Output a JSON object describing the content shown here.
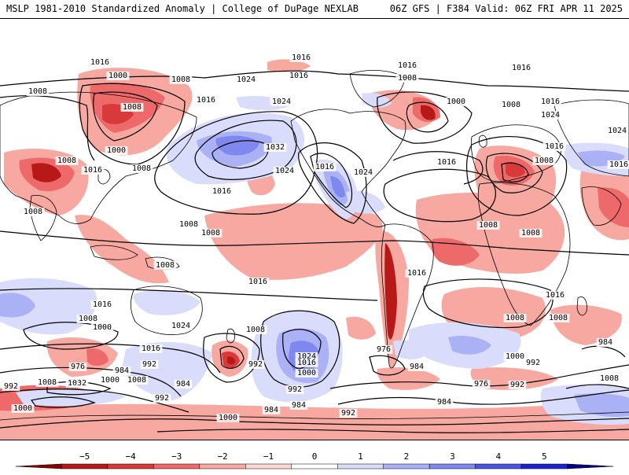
{
  "header": {
    "left_title": "MSLP 1981-2010 Standardized Anomaly | College of DuPage NEXLAB",
    "right_title": "06Z GFS | F384 Valid: 06Z FRI APR 11 2025"
  },
  "colorbar": {
    "ticks": [
      "−5",
      "−4",
      "−3",
      "−2",
      "−1",
      "0",
      "1",
      "2",
      "3",
      "4",
      "5"
    ],
    "colors": [
      "#8b0000",
      "#b71818",
      "#d83a3a",
      "#ee6a6a",
      "#f7a8a0",
      "#fcd9d2",
      "#ffffff",
      "#d9dcfa",
      "#aab1f4",
      "#7f88ee",
      "#4b55e2",
      "#1a22c9",
      "#00008b"
    ]
  },
  "map": {
    "colors": {
      "ocean": "#ffffff",
      "land": "#ffffff",
      "coast": "#000000",
      "neg_light": "#f7a8a0",
      "neg_mid": "#ee6a6a",
      "neg_strong": "#d83a3a",
      "neg_extreme": "#b71818",
      "pos_light": "#d9dcfa",
      "pos_mid": "#aab1f4",
      "pos_strong": "#7f88ee",
      "pos_extreme": "#4b55e2"
    },
    "isobar_labels": [
      {
        "id": "l1",
        "text": "1016"
      },
      {
        "id": "l2",
        "text": "1016"
      },
      {
        "id": "l3",
        "text": "1016"
      },
      {
        "id": "l4",
        "text": "1016"
      },
      {
        "id": "l5",
        "text": "1000"
      },
      {
        "id": "l6",
        "text": "1008"
      },
      {
        "id": "l7",
        "text": "1008"
      },
      {
        "id": "l8",
        "text": "1016"
      },
      {
        "id": "l9",
        "text": "1024"
      },
      {
        "id": "l10",
        "text": "1016"
      },
      {
        "id": "l11",
        "text": "1024"
      },
      {
        "id": "l12",
        "text": "1008"
      },
      {
        "id": "l13",
        "text": "1000"
      },
      {
        "id": "l14",
        "text": "1008"
      },
      {
        "id": "l15",
        "text": "1016"
      },
      {
        "id": "l16",
        "text": "1024"
      },
      {
        "id": "l17",
        "text": "1016"
      },
      {
        "id": "l18",
        "text": "1008"
      },
      {
        "id": "l19",
        "text": "1000"
      },
      {
        "id": "l20",
        "text": "1008"
      },
      {
        "id": "l21",
        "text": "1032"
      },
      {
        "id": "l22",
        "text": "1024"
      },
      {
        "id": "l23",
        "text": "1016"
      },
      {
        "id": "l24",
        "text": "1016"
      },
      {
        "id": "l25",
        "text": "1024"
      },
      {
        "id": "l26",
        "text": "1016"
      },
      {
        "id": "l27",
        "text": "1008"
      },
      {
        "id": "l28",
        "text": "1016"
      },
      {
        "id": "l29",
        "text": "1024"
      },
      {
        "id": "l30",
        "text": "1016"
      },
      {
        "id": "l31",
        "text": "1008"
      },
      {
        "id": "l32",
        "text": "1008"
      },
      {
        "id": "l33",
        "text": "1008"
      },
      {
        "id": "l34",
        "text": "1008"
      },
      {
        "id": "l35",
        "text": "1008"
      },
      {
        "id": "l36",
        "text": "1008"
      },
      {
        "id": "l37",
        "text": "1008"
      },
      {
        "id": "l38",
        "text": "1016"
      },
      {
        "id": "l39",
        "text": "1016"
      },
      {
        "id": "l40",
        "text": "1016"
      },
      {
        "id": "l41",
        "text": "1016"
      },
      {
        "id": "l42",
        "text": "1024"
      },
      {
        "id": "l43",
        "text": "1008"
      },
      {
        "id": "l44",
        "text": "1000"
      },
      {
        "id": "l45",
        "text": "1016"
      },
      {
        "id": "l46",
        "text": "1008"
      },
      {
        "id": "l47",
        "text": "1024"
      },
      {
        "id": "l48",
        "text": "1016"
      },
      {
        "id": "l49",
        "text": "992"
      },
      {
        "id": "l50",
        "text": "1000"
      },
      {
        "id": "l51",
        "text": "976"
      },
      {
        "id": "l52",
        "text": "984"
      },
      {
        "id": "l53",
        "text": "1008"
      },
      {
        "id": "l54",
        "text": "992"
      },
      {
        "id": "l55",
        "text": "1000"
      },
      {
        "id": "l56",
        "text": "984"
      },
      {
        "id": "l57",
        "text": "992"
      },
      {
        "id": "l58",
        "text": "992"
      },
      {
        "id": "l59",
        "text": "1032"
      },
      {
        "id": "l60",
        "text": "1000"
      },
      {
        "id": "l61",
        "text": "1008"
      },
      {
        "id": "l62",
        "text": "984"
      },
      {
        "id": "l63",
        "text": "992"
      },
      {
        "id": "l64",
        "text": "984"
      },
      {
        "id": "l65",
        "text": "992"
      },
      {
        "id": "l66",
        "text": "976"
      },
      {
        "id": "l67",
        "text": "984"
      },
      {
        "id": "l68",
        "text": "976"
      },
      {
        "id": "l69",
        "text": "992"
      },
      {
        "id": "l70",
        "text": "984"
      },
      {
        "id": "l71",
        "text": "1008"
      },
      {
        "id": "l72",
        "text": "1008"
      },
      {
        "id": "l73",
        "text": "1000"
      },
      {
        "id": "l74",
        "text": "984"
      },
      {
        "id": "l75",
        "text": "992"
      },
      {
        "id": "l76",
        "text": "1000"
      },
      {
        "id": "l77",
        "text": "1008"
      }
    ]
  }
}
